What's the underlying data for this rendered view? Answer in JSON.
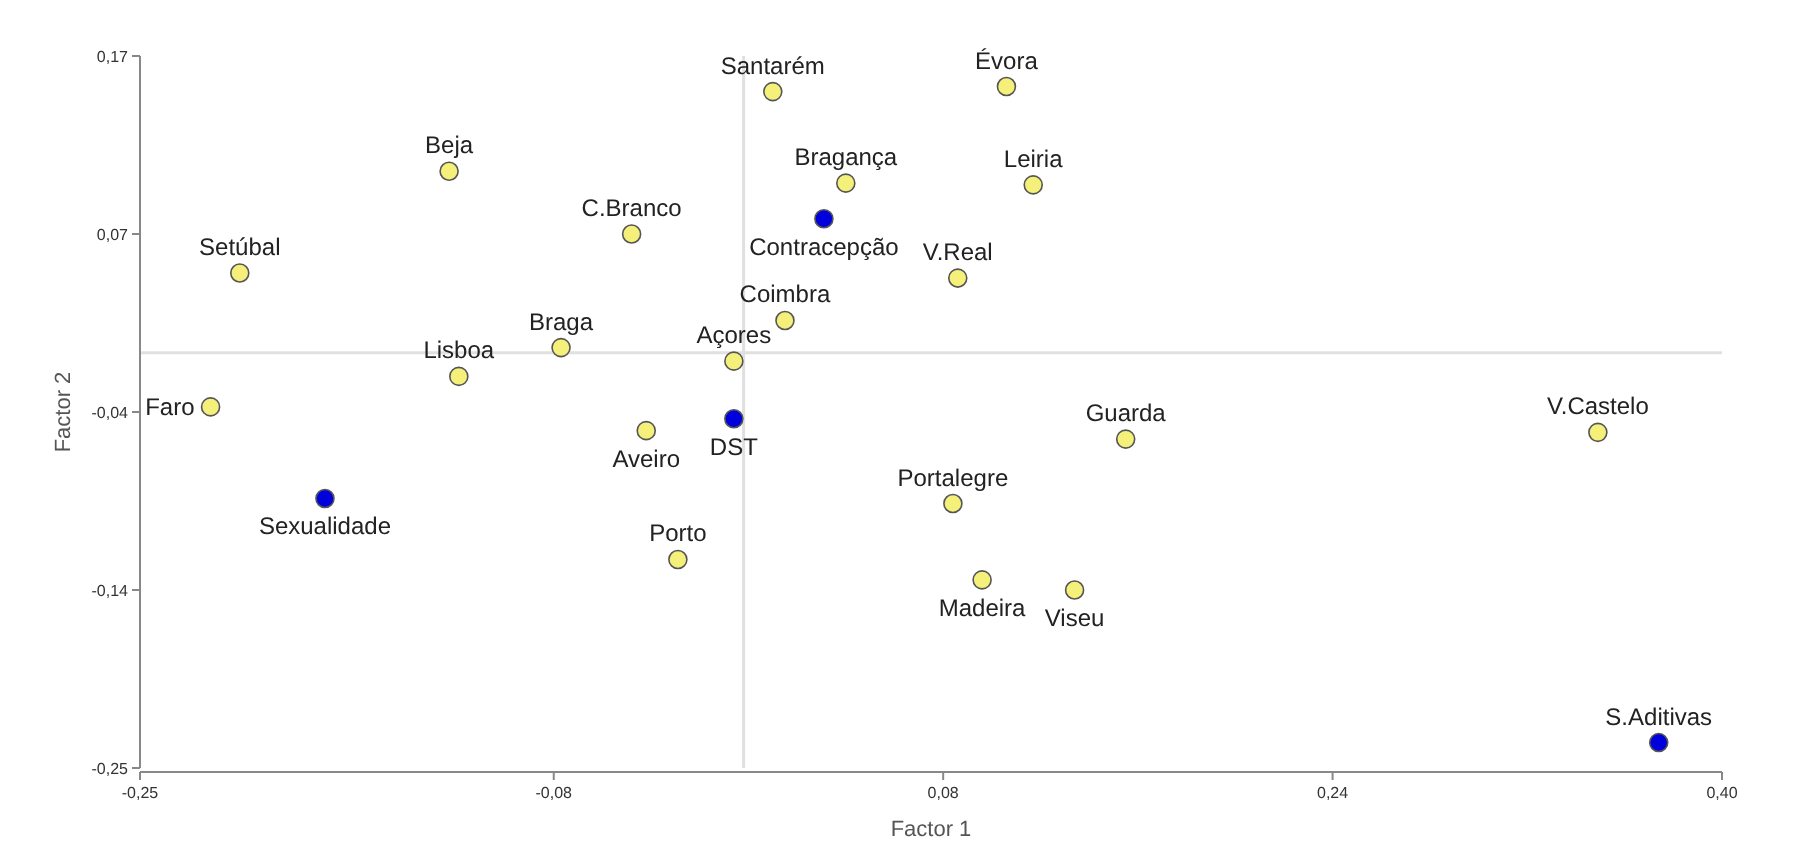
{
  "chart_data": {
    "type": "scatter",
    "xlabel": "Factor 1",
    "ylabel": "Factor 2",
    "marker": "circle",
    "grid": false,
    "xlim": [
      -0.25,
      0.4
    ],
    "ylim": [
      -0.25,
      0.17
    ],
    "xticks": [
      {
        "value": -0.25,
        "label": "-0,25"
      },
      {
        "value": -0.08,
        "label": "-0,08"
      },
      {
        "value": 0.08,
        "label": "0,08"
      },
      {
        "value": 0.24,
        "label": "0,24"
      },
      {
        "value": 0.4,
        "label": "0,40"
      }
    ],
    "yticks": [
      {
        "value": -0.25,
        "label": "-0,25"
      },
      {
        "value": -0.145,
        "label": "-0,14"
      },
      {
        "value": -0.04,
        "label": "-0,04"
      },
      {
        "value": 0.065,
        "label": "0,07"
      },
      {
        "value": 0.17,
        "label": "0,17"
      }
    ],
    "ref_lines": [
      {
        "axis": "x",
        "value": -0.002,
        "color": "#e0e0e0"
      },
      {
        "axis": "y",
        "value": -0.005,
        "color": "#e0e0e0"
      }
    ],
    "series": [
      {
        "color": "#f5f07a",
        "x": [
          0.01,
          0.106,
          -0.123,
          0.04,
          0.117,
          -0.048,
          -0.209,
          0.086,
          0.015,
          -0.077,
          -0.006,
          -0.221,
          -0.119,
          -0.042,
          0.155,
          0.349,
          0.084,
          -0.029,
          0.096,
          0.134
        ],
        "values": [
          0.149,
          0.152,
          0.102,
          0.095,
          0.094,
          0.065,
          0.042,
          0.039,
          0.014,
          -0.002,
          -0.01,
          -0.037,
          -0.019,
          -0.051,
          -0.056,
          -0.052,
          -0.094,
          -0.127,
          -0.139,
          -0.145
        ]
      },
      {
        "color": "#0000dd",
        "x": [
          0.031,
          -0.006,
          -0.174,
          0.374
        ],
        "values": [
          0.074,
          -0.044,
          -0.091,
          -0.235
        ]
      }
    ],
    "annotations": [
      {
        "text": "Santarém",
        "x": 0.01,
        "y": 0.149
      },
      {
        "text": "Évora",
        "x": 0.106,
        "y": 0.152
      },
      {
        "text": "Beja",
        "x": -0.123,
        "y": 0.102
      },
      {
        "text": "Bragança",
        "x": 0.04,
        "y": 0.095
      },
      {
        "text": "Leiria",
        "x": 0.117,
        "y": 0.094
      },
      {
        "text": "C.Branco",
        "x": -0.048,
        "y": 0.065
      },
      {
        "text": "Setúbal",
        "x": -0.209,
        "y": 0.042
      },
      {
        "text": "V.Real",
        "x": 0.086,
        "y": 0.039
      },
      {
        "text": "Coimbra",
        "x": 0.015,
        "y": 0.014
      },
      {
        "text": "Braga",
        "x": -0.077,
        "y": -0.002
      },
      {
        "text": "Açores",
        "x": -0.006,
        "y": -0.01
      },
      {
        "text": "Faro",
        "x": -0.221,
        "y": -0.037
      },
      {
        "text": "Lisboa",
        "x": -0.119,
        "y": -0.019
      },
      {
        "text": "Aveiro",
        "x": -0.042,
        "y": -0.051
      },
      {
        "text": "Guarda",
        "x": 0.155,
        "y": -0.056
      },
      {
        "text": "V.Castelo",
        "x": 0.349,
        "y": -0.052
      },
      {
        "text": "Portalegre",
        "x": 0.084,
        "y": -0.094
      },
      {
        "text": "Porto",
        "x": -0.029,
        "y": -0.127
      },
      {
        "text": "Madeira",
        "x": 0.096,
        "y": -0.139
      },
      {
        "text": "Viseu",
        "x": 0.134,
        "y": -0.145
      },
      {
        "text": "Contracepção",
        "x": 0.031,
        "y": 0.074
      },
      {
        "text": "DST",
        "x": -0.006,
        "y": -0.044
      },
      {
        "text": "Sexualidade",
        "x": -0.174,
        "y": -0.091
      },
      {
        "text": "S.Aditivas",
        "x": 0.374,
        "y": -0.235
      }
    ]
  }
}
